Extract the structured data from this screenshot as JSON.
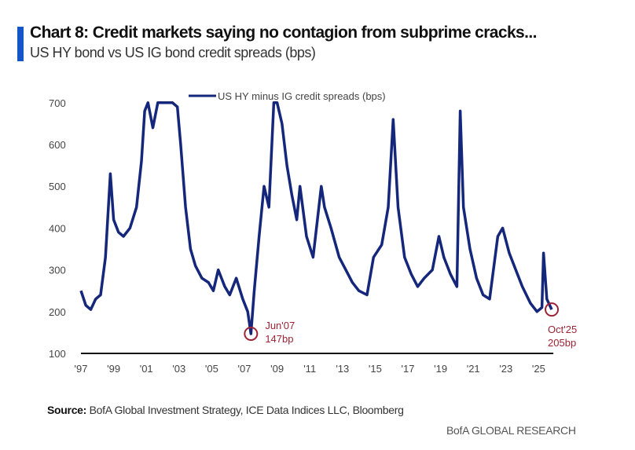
{
  "title": "Chart 8: Credit markets saying no contagion from subprime cracks...",
  "subtitle": "US HY bond vs US IG bond credit spreads (bps)",
  "source_label": "Source:",
  "source_text": "BofA Global Investment Strategy, ICE Data Indices LLC, Bloomberg",
  "brand": "BofA GLOBAL RESEARCH",
  "chart_data": {
    "type": "line",
    "title": "Chart 8: Credit markets saying no contagion from subprime cracks...",
    "subtitle": "US HY bond vs US IG bond credit spreads (bps)",
    "xlabel": "",
    "ylabel": "",
    "ylim": [
      100,
      700
    ],
    "xlim": [
      1997,
      2026
    ],
    "yticks": [
      100,
      200,
      300,
      400,
      500,
      600,
      700
    ],
    "xticks": [
      {
        "v": 1997,
        "label": "'97"
      },
      {
        "v": 1999,
        "label": "'99"
      },
      {
        "v": 2001,
        "label": "'01"
      },
      {
        "v": 2003,
        "label": "'03"
      },
      {
        "v": 2005,
        "label": "'05"
      },
      {
        "v": 2007,
        "label": "'07"
      },
      {
        "v": 2009,
        "label": "'09"
      },
      {
        "v": 2011,
        "label": "'11"
      },
      {
        "v": 2013,
        "label": "'13"
      },
      {
        "v": 2015,
        "label": "'15"
      },
      {
        "v": 2017,
        "label": "'17"
      },
      {
        "v": 2019,
        "label": "'19"
      },
      {
        "v": 2021,
        "label": "'21"
      },
      {
        "v": 2023,
        "label": "'23"
      },
      {
        "v": 2025,
        "label": "'25"
      }
    ],
    "grid": false,
    "legend": "top-center",
    "colors": {
      "series": "#14277a",
      "annotation": "#9b2335",
      "axis": "#111111"
    },
    "series": [
      {
        "name": "US HY minus IG credit spreads (bps)",
        "x": [
          1997.0,
          1997.3,
          1997.6,
          1997.9,
          1998.2,
          1998.5,
          1998.8,
          1999.0,
          1999.3,
          1999.6,
          2000.0,
          2000.4,
          2000.7,
          2000.9,
          2001.1,
          2001.4,
          2001.7,
          2002.0,
          2002.3,
          2002.6,
          2002.9,
          2003.1,
          2003.4,
          2003.7,
          2004.0,
          2004.4,
          2004.8,
          2005.1,
          2005.4,
          2005.8,
          2006.1,
          2006.5,
          2006.9,
          2007.2,
          2007.4,
          2007.6,
          2007.9,
          2008.2,
          2008.5,
          2008.8,
          2009.0,
          2009.3,
          2009.6,
          2009.9,
          2010.2,
          2010.4,
          2010.8,
          2011.2,
          2011.7,
          2011.9,
          2012.3,
          2012.8,
          2013.2,
          2013.6,
          2014.0,
          2014.5,
          2014.9,
          2015.4,
          2015.8,
          2016.1,
          2016.4,
          2016.8,
          2017.2,
          2017.6,
          2018.0,
          2018.5,
          2018.9,
          2019.2,
          2019.6,
          2020.0,
          2020.2,
          2020.4,
          2020.8,
          2021.2,
          2021.6,
          2022.0,
          2022.5,
          2022.8,
          2023.2,
          2023.6,
          2024.0,
          2024.5,
          2024.9,
          2025.2,
          2025.3,
          2025.5,
          2025.8
        ],
        "values": [
          250,
          215,
          205,
          230,
          240,
          330,
          530,
          420,
          390,
          380,
          400,
          450,
          560,
          680,
          700,
          640,
          700,
          700,
          700,
          700,
          690,
          600,
          450,
          350,
          310,
          280,
          270,
          250,
          300,
          260,
          240,
          280,
          230,
          200,
          147,
          250,
          380,
          500,
          450,
          700,
          700,
          650,
          550,
          480,
          420,
          500,
          380,
          330,
          500,
          450,
          400,
          330,
          300,
          270,
          250,
          240,
          330,
          360,
          450,
          660,
          450,
          330,
          290,
          260,
          280,
          300,
          380,
          330,
          290,
          260,
          680,
          450,
          350,
          280,
          240,
          230,
          380,
          400,
          340,
          300,
          260,
          220,
          200,
          210,
          340,
          230,
          205
        ]
      }
    ],
    "annotations": [
      {
        "x": 2007.4,
        "y": 147,
        "label1": "Jun'07",
        "label2": "147bp"
      },
      {
        "x": 2025.8,
        "y": 205,
        "label1": "Oct'25",
        "label2": "205bp"
      }
    ]
  }
}
